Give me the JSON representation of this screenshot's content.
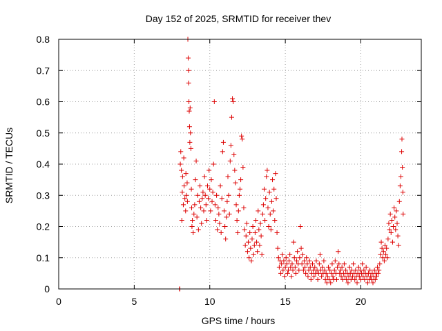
{
  "chart_data": {
    "type": "scatter",
    "title": "Day 152 of 2025, SRMTID for receiver thev",
    "xlabel": "GPS time / hours",
    "ylabel": "SRMTID / TECUs",
    "xlim": [
      0,
      24
    ],
    "ylim": [
      0,
      0.8
    ],
    "xticks": [
      0,
      5,
      10,
      15,
      20
    ],
    "yticks": [
      0,
      0.1,
      0.2,
      0.3,
      0.4,
      0.5,
      0.6,
      0.7,
      0.8
    ],
    "xtick_labels": [
      "0",
      "5",
      "10",
      "15",
      "20"
    ],
    "ytick_labels": [
      "0",
      "0.1",
      "0.2",
      "0.3",
      "0.4",
      "0.5",
      "0.6",
      "0.7",
      "0.8"
    ],
    "grid": true,
    "marker": "+",
    "color": "#dd0000",
    "series": [
      {
        "name": "SRMTID",
        "points": [
          [
            8.0,
            0.0
          ],
          [
            8.02,
            0.0
          ],
          [
            8.05,
            0.4
          ],
          [
            8.08,
            0.44
          ],
          [
            8.12,
            0.38
          ],
          [
            8.15,
            0.22
          ],
          [
            8.18,
            0.31
          ],
          [
            8.2,
            0.36
          ],
          [
            8.25,
            0.27
          ],
          [
            8.28,
            0.42
          ],
          [
            8.3,
            0.33
          ],
          [
            8.35,
            0.29
          ],
          [
            8.4,
            0.25
          ],
          [
            8.42,
            0.37
          ],
          [
            8.45,
            0.3
          ],
          [
            8.5,
            0.34
          ],
          [
            8.52,
            0.28
          ],
          [
            8.55,
            0.8
          ],
          [
            8.57,
            0.74
          ],
          [
            8.6,
            0.7
          ],
          [
            8.6,
            0.66
          ],
          [
            8.62,
            0.6
          ],
          [
            8.64,
            0.57
          ],
          [
            8.66,
            0.52
          ],
          [
            8.68,
            0.47
          ],
          [
            8.7,
            0.58
          ],
          [
            8.72,
            0.5
          ],
          [
            8.75,
            0.45
          ],
          [
            8.78,
            0.32
          ],
          [
            8.8,
            0.26
          ],
          [
            8.82,
            0.2
          ],
          [
            8.85,
            0.22
          ],
          [
            8.9,
            0.18
          ],
          [
            8.95,
            0.24
          ],
          [
            9.0,
            0.27
          ],
          [
            9.05,
            0.35
          ],
          [
            9.1,
            0.41
          ],
          [
            9.15,
            0.23
          ],
          [
            9.2,
            0.3
          ],
          [
            9.25,
            0.19
          ],
          [
            9.3,
            0.28
          ],
          [
            9.35,
            0.33
          ],
          [
            9.4,
            0.26
          ],
          [
            9.45,
            0.21
          ],
          [
            9.5,
            0.29
          ],
          [
            9.55,
            0.31
          ],
          [
            9.6,
            0.25
          ],
          [
            9.65,
            0.36
          ],
          [
            9.7,
            0.3
          ],
          [
            9.75,
            0.27
          ],
          [
            9.8,
            0.22
          ],
          [
            9.85,
            0.33
          ],
          [
            9.9,
            0.29
          ],
          [
            9.95,
            0.38
          ],
          [
            10.0,
            0.32
          ],
          [
            10.05,
            0.25
          ],
          [
            10.1,
            0.35
          ],
          [
            10.15,
            0.28
          ],
          [
            10.2,
            0.31
          ],
          [
            10.25,
            0.4
          ],
          [
            10.3,
            0.6
          ],
          [
            10.35,
            0.27
          ],
          [
            10.4,
            0.22
          ],
          [
            10.45,
            0.3
          ],
          [
            10.5,
            0.19
          ],
          [
            10.55,
            0.26
          ],
          [
            10.6,
            0.24
          ],
          [
            10.65,
            0.21
          ],
          [
            10.7,
            0.33
          ],
          [
            10.75,
            0.18
          ],
          [
            10.8,
            0.29
          ],
          [
            10.85,
            0.44
          ],
          [
            10.9,
            0.47
          ],
          [
            10.95,
            0.25
          ],
          [
            11.0,
            0.2
          ],
          [
            11.05,
            0.16
          ],
          [
            11.1,
            0.23
          ],
          [
            11.15,
            0.28
          ],
          [
            11.2,
            0.36
          ],
          [
            11.25,
            0.3
          ],
          [
            11.3,
            0.24
          ],
          [
            11.35,
            0.41
          ],
          [
            11.4,
            0.46
          ],
          [
            11.45,
            0.55
          ],
          [
            11.5,
            0.61
          ],
          [
            11.55,
            0.6
          ],
          [
            11.6,
            0.43
          ],
          [
            11.65,
            0.38
          ],
          [
            11.7,
            0.34
          ],
          [
            11.75,
            0.27
          ],
          [
            11.8,
            0.22
          ],
          [
            11.85,
            0.18
          ],
          [
            11.9,
            0.25
          ],
          [
            11.95,
            0.3
          ],
          [
            12.0,
            0.32
          ],
          [
            12.05,
            0.35
          ],
          [
            12.1,
            0.49
          ],
          [
            12.15,
            0.48
          ],
          [
            12.2,
            0.39
          ],
          [
            12.25,
            0.26
          ],
          [
            12.3,
            0.19
          ],
          [
            12.35,
            0.14
          ],
          [
            12.4,
            0.17
          ],
          [
            12.45,
            0.21
          ],
          [
            12.5,
            0.12
          ],
          [
            12.55,
            0.15
          ],
          [
            12.6,
            0.1
          ],
          [
            12.65,
            0.18
          ],
          [
            12.7,
            0.13
          ],
          [
            12.75,
            0.09
          ],
          [
            12.8,
            0.16
          ],
          [
            12.85,
            0.2
          ],
          [
            12.9,
            0.11
          ],
          [
            12.95,
            0.14
          ],
          [
            13.0,
            0.18
          ],
          [
            13.05,
            0.22
          ],
          [
            13.1,
            0.15
          ],
          [
            13.15,
            0.12
          ],
          [
            13.2,
            0.25
          ],
          [
            13.25,
            0.19
          ],
          [
            13.3,
            0.14
          ],
          [
            13.35,
            0.21
          ],
          [
            13.4,
            0.17
          ],
          [
            13.45,
            0.11
          ],
          [
            13.5,
            0.24
          ],
          [
            13.55,
            0.27
          ],
          [
            13.6,
            0.32
          ],
          [
            13.65,
            0.22
          ],
          [
            13.7,
            0.29
          ],
          [
            13.75,
            0.36
          ],
          [
            13.8,
            0.38
          ],
          [
            13.85,
            0.26
          ],
          [
            13.9,
            0.2
          ],
          [
            13.95,
            0.31
          ],
          [
            14.0,
            0.24
          ],
          [
            14.05,
            0.19
          ],
          [
            14.1,
            0.28
          ],
          [
            14.15,
            0.35
          ],
          [
            14.2,
            0.25
          ],
          [
            14.25,
            0.32
          ],
          [
            14.3,
            0.22
          ],
          [
            14.35,
            0.37
          ],
          [
            14.4,
            0.29
          ],
          [
            14.45,
            0.18
          ],
          [
            14.5,
            0.13
          ],
          [
            14.55,
            0.1
          ],
          [
            14.6,
            0.07
          ],
          [
            14.65,
            0.09
          ],
          [
            14.7,
            0.05
          ],
          [
            14.75,
            0.08
          ],
          [
            14.8,
            0.11
          ],
          [
            14.85,
            0.06
          ],
          [
            14.9,
            0.09
          ],
          [
            14.95,
            0.04
          ],
          [
            15.0,
            0.07
          ],
          [
            15.05,
            0.1
          ],
          [
            15.1,
            0.08
          ],
          [
            15.15,
            0.05
          ],
          [
            15.2,
            0.06
          ],
          [
            15.25,
            0.09
          ],
          [
            15.3,
            0.11
          ],
          [
            15.35,
            0.07
          ],
          [
            15.4,
            0.04
          ],
          [
            15.45,
            0.08
          ],
          [
            15.5,
            0.06
          ],
          [
            15.55,
            0.15
          ],
          [
            15.6,
            0.1
          ],
          [
            15.65,
            0.07
          ],
          [
            15.7,
            0.05
          ],
          [
            15.75,
            0.09
          ],
          [
            15.8,
            0.12
          ],
          [
            15.85,
            0.08
          ],
          [
            15.9,
            0.06
          ],
          [
            15.95,
            0.1
          ],
          [
            16.0,
            0.2
          ],
          [
            16.05,
            0.13
          ],
          [
            16.1,
            0.08
          ],
          [
            16.15,
            0.11
          ],
          [
            16.2,
            0.06
          ],
          [
            16.25,
            0.09
          ],
          [
            16.3,
            0.07
          ],
          [
            16.35,
            0.05
          ],
          [
            16.4,
            0.1
          ],
          [
            16.45,
            0.08
          ],
          [
            16.5,
            0.04
          ],
          [
            16.55,
            0.06
          ],
          [
            16.6,
            0.09
          ],
          [
            16.65,
            0.07
          ],
          [
            16.7,
            0.03
          ],
          [
            16.75,
            0.05
          ],
          [
            16.8,
            0.08
          ],
          [
            16.85,
            0.06
          ],
          [
            16.9,
            0.04
          ],
          [
            16.95,
            0.07
          ],
          [
            17.0,
            0.05
          ],
          [
            17.05,
            0.09
          ],
          [
            17.1,
            0.06
          ],
          [
            17.15,
            0.03
          ],
          [
            17.2,
            0.05
          ],
          [
            17.25,
            0.08
          ],
          [
            17.3,
            0.11
          ],
          [
            17.35,
            0.06
          ],
          [
            17.4,
            0.04
          ],
          [
            17.45,
            0.07
          ],
          [
            17.5,
            0.05
          ],
          [
            17.55,
            0.09
          ],
          [
            17.6,
            0.06
          ],
          [
            17.65,
            0.03
          ],
          [
            17.7,
            0.05
          ],
          [
            17.75,
            0.02
          ],
          [
            17.8,
            0.04
          ],
          [
            17.85,
            0.07
          ],
          [
            17.9,
            0.03
          ],
          [
            17.95,
            0.06
          ],
          [
            18.0,
            0.02
          ],
          [
            18.05,
            0.05
          ],
          [
            18.1,
            0.08
          ],
          [
            18.15,
            0.04
          ],
          [
            18.2,
            0.03
          ],
          [
            18.25,
            0.06
          ],
          [
            18.3,
            0.09
          ],
          [
            18.35,
            0.05
          ],
          [
            18.4,
            0.03
          ],
          [
            18.45,
            0.07
          ],
          [
            18.5,
            0.12
          ],
          [
            18.55,
            0.08
          ],
          [
            18.6,
            0.05
          ],
          [
            18.65,
            0.06
          ],
          [
            18.7,
            0.04
          ],
          [
            18.75,
            0.07
          ],
          [
            18.8,
            0.03
          ],
          [
            18.85,
            0.05
          ],
          [
            18.9,
            0.08
          ],
          [
            18.95,
            0.04
          ],
          [
            19.0,
            0.06
          ],
          [
            19.05,
            0.03
          ],
          [
            19.1,
            0.05
          ],
          [
            19.15,
            0.02
          ],
          [
            19.2,
            0.04
          ],
          [
            19.25,
            0.07
          ],
          [
            19.3,
            0.05
          ],
          [
            19.35,
            0.03
          ],
          [
            19.4,
            0.06
          ],
          [
            19.45,
            0.04
          ],
          [
            19.5,
            0.08
          ],
          [
            19.55,
            0.05
          ],
          [
            19.6,
            0.03
          ],
          [
            19.65,
            0.06
          ],
          [
            19.7,
            0.04
          ],
          [
            19.75,
            0.02
          ],
          [
            19.8,
            0.05
          ],
          [
            19.85,
            0.07
          ],
          [
            19.9,
            0.04
          ],
          [
            19.95,
            0.06
          ],
          [
            20.0,
            0.03
          ],
          [
            20.05,
            0.05
          ],
          [
            20.1,
            0.08
          ],
          [
            20.15,
            0.04
          ],
          [
            20.2,
            0.06
          ],
          [
            20.25,
            0.03
          ],
          [
            20.3,
            0.05
          ],
          [
            20.35,
            0.07
          ],
          [
            20.4,
            0.04
          ],
          [
            20.45,
            0.02
          ],
          [
            20.5,
            0.05
          ],
          [
            20.55,
            0.03
          ],
          [
            20.6,
            0.06
          ],
          [
            20.65,
            0.04
          ],
          [
            20.7,
            0.03
          ],
          [
            20.75,
            0.05
          ],
          [
            20.8,
            0.02
          ],
          [
            20.85,
            0.04
          ],
          [
            20.9,
            0.06
          ],
          [
            20.95,
            0.03
          ],
          [
            21.0,
            0.05
          ],
          [
            21.05,
            0.04
          ],
          [
            21.1,
            0.07
          ],
          [
            21.15,
            0.05
          ],
          [
            21.2,
            0.06
          ],
          [
            21.25,
            0.08
          ],
          [
            21.3,
            0.11
          ],
          [
            21.35,
            0.15
          ],
          [
            21.4,
            0.13
          ],
          [
            21.45,
            0.1
          ],
          [
            21.5,
            0.12
          ],
          [
            21.55,
            0.09
          ],
          [
            21.6,
            0.14
          ],
          [
            21.65,
            0.11
          ],
          [
            21.7,
            0.13
          ],
          [
            21.75,
            0.1
          ],
          [
            21.8,
            0.16
          ],
          [
            21.85,
            0.21
          ],
          [
            21.9,
            0.19
          ],
          [
            21.95,
            0.24
          ],
          [
            22.0,
            0.18
          ],
          [
            22.05,
            0.22
          ],
          [
            22.1,
            0.15
          ],
          [
            22.15,
            0.2
          ],
          [
            22.2,
            0.26
          ],
          [
            22.25,
            0.23
          ],
          [
            22.3,
            0.19
          ],
          [
            22.35,
            0.25
          ],
          [
            22.4,
            0.21
          ],
          [
            22.45,
            0.17
          ],
          [
            22.5,
            0.14
          ],
          [
            22.55,
            0.28
          ],
          [
            22.6,
            0.33
          ],
          [
            22.65,
            0.36
          ],
          [
            22.7,
            0.44
          ],
          [
            22.72,
            0.48
          ],
          [
            22.75,
            0.39
          ],
          [
            22.78,
            0.31
          ],
          [
            22.8,
            0.24
          ]
        ]
      }
    ]
  }
}
